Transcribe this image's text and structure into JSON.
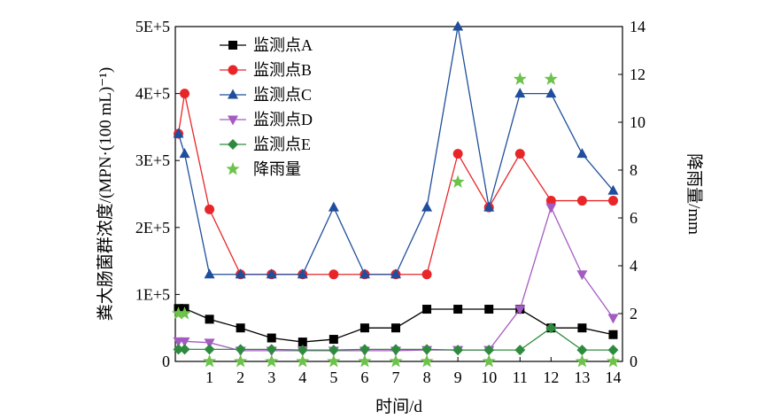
{
  "chart_data": {
    "type": "line",
    "x": [
      0,
      0.2,
      1,
      2,
      3,
      4,
      5,
      6,
      7,
      8,
      9,
      10,
      11,
      12,
      13,
      14
    ],
    "xticks": [
      1,
      2,
      3,
      4,
      5,
      6,
      7,
      8,
      9,
      10,
      11,
      12,
      13,
      14
    ],
    "xlim": [
      -0.1,
      14.3
    ],
    "xlabel": "时间/d",
    "ylabel_left": "粪大肠菌群浓度/(MPN·(100 mL)⁻¹)",
    "ylim_left": [
      0,
      500000
    ],
    "yticks_left": [
      "0",
      "1E+5",
      "2E+5",
      "3E+5",
      "4E+5",
      "5E+5"
    ],
    "ylabel_right": "降雨量/mm",
    "ylim_right": [
      0,
      14
    ],
    "yticks_right": [
      "0",
      "2",
      "4",
      "6",
      "8",
      "10",
      "12",
      "14"
    ],
    "legend_position": "top-left",
    "series": [
      {
        "name": "监测点A",
        "marker": "square",
        "color": "#000000",
        "values": [
          79000,
          79000,
          63000,
          50000,
          35000,
          29000,
          33000,
          50000,
          50000,
          78000,
          78000,
          78000,
          78000,
          50000,
          50000,
          40000
        ]
      },
      {
        "name": "监测点B",
        "marker": "circle",
        "color": "#e8262a",
        "values": [
          340000,
          400000,
          227000,
          130000,
          130000,
          130000,
          130000,
          130000,
          130000,
          130000,
          310000,
          230000,
          310000,
          240000,
          240000,
          240000
        ]
      },
      {
        "name": "监测点C",
        "marker": "triangle-up",
        "color": "#1f4e9c",
        "values": [
          340000,
          310000,
          130000,
          130000,
          130000,
          130000,
          230000,
          130000,
          130000,
          230000,
          500000,
          230000,
          400000,
          400000,
          310000,
          255000
        ]
      },
      {
        "name": "监测点D",
        "marker": "triangle-down",
        "color": "#a35bc2",
        "values": [
          30000,
          30000,
          28000,
          16000,
          16000,
          16000,
          16000,
          16000,
          16000,
          17000,
          17000,
          17000,
          78000,
          230000,
          130000,
          65000
        ]
      },
      {
        "name": "监测点E",
        "marker": "diamond",
        "color": "#2e8b3e",
        "values": [
          18000,
          18000,
          18000,
          18000,
          18000,
          17000,
          17000,
          18000,
          18000,
          18000,
          17000,
          17000,
          17000,
          50000,
          17000,
          17000
        ]
      }
    ],
    "rain": {
      "name": "降雨量",
      "marker": "star",
      "color": "#6cc24a",
      "axis": "right",
      "x": [
        0,
        0.2,
        1,
        2,
        3,
        4,
        5,
        6,
        7,
        8,
        9,
        10,
        11,
        12,
        13,
        14
      ],
      "values": [
        2,
        2,
        0,
        0,
        0,
        0,
        0,
        0,
        0,
        0,
        7.5,
        0,
        11.8,
        11.8,
        0,
        0
      ]
    }
  }
}
